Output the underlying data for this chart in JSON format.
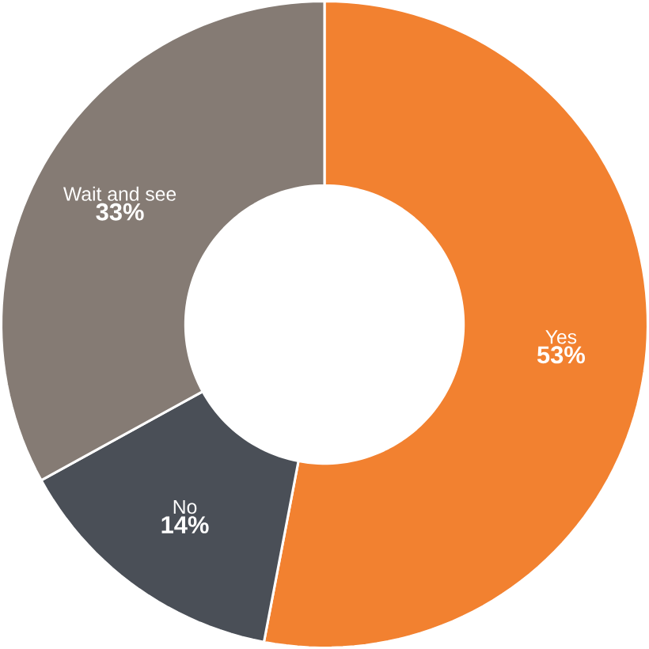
{
  "chart_data": {
    "type": "donut",
    "categories": [
      "Yes",
      "No",
      "Wait and see"
    ],
    "values": [
      53,
      14,
      33
    ],
    "colors": [
      "#f28130",
      "#4a4f57",
      "#857b74"
    ],
    "value_labels": [
      "53%",
      "14%",
      "33%"
    ]
  }
}
